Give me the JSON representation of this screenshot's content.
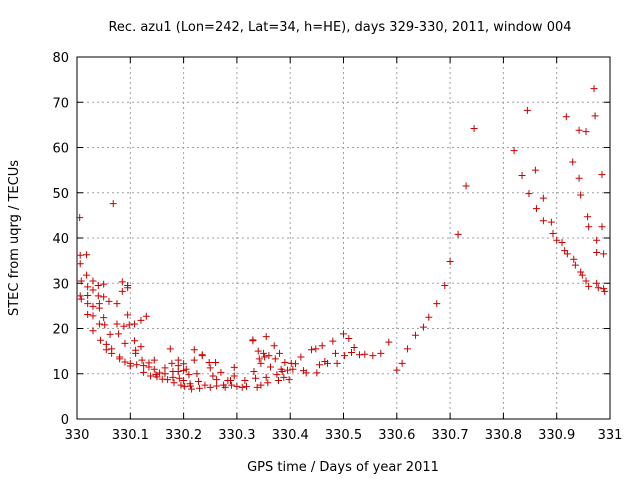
{
  "chart_data": {
    "type": "scatter",
    "title": "Rec. azu1 (Lon=242, Lat=34, h=HE), days 329-330, 2011, window 004",
    "xlabel": "GPS time / Days of year 2011",
    "ylabel": "STEC from uqrg / TECUs",
    "xlim": [
      330,
      331
    ],
    "ylim": [
      0,
      80
    ],
    "xticks": [
      330,
      330.1,
      330.2,
      330.3,
      330.4,
      330.5,
      330.6,
      330.7,
      330.8,
      330.9,
      331
    ],
    "xtick_labels": [
      "330",
      "330.1",
      "330.2",
      "330.3",
      "330.4",
      "330.5",
      "330.6",
      "330.7",
      "330.8",
      "330.9",
      "331"
    ],
    "yticks": [
      0,
      10,
      20,
      30,
      40,
      50,
      60,
      70,
      80
    ],
    "ytick_labels": [
      "0",
      "10",
      "20",
      "30",
      "40",
      "50",
      "60",
      "70",
      "80"
    ],
    "grid": true,
    "marker": "+",
    "color": "#cc0000",
    "series": [
      {
        "points": [
          [
            330.005,
            44.5
          ],
          [
            330.006,
            36.2
          ],
          [
            330.006,
            34.3
          ],
          [
            330.008,
            30.5
          ],
          [
            330.006,
            27.2
          ],
          [
            330.008,
            26.5
          ],
          [
            330.018,
            36.3
          ],
          [
            330.018,
            31.8
          ],
          [
            330.02,
            29.2
          ],
          [
            330.02,
            27.3
          ],
          [
            330.02,
            25.5
          ],
          [
            330.02,
            23.1
          ],
          [
            330.03,
            30.5
          ],
          [
            330.03,
            28.5
          ],
          [
            330.03,
            24.9
          ],
          [
            330.03,
            22.8
          ],
          [
            330.03,
            19.5
          ],
          [
            330.04,
            29.5
          ],
          [
            330.04,
            27.2
          ],
          [
            330.042,
            25.5
          ],
          [
            330.042,
            24.5
          ],
          [
            330.042,
            21.0
          ],
          [
            330.044,
            17.4
          ],
          [
            330.05,
            29.8
          ],
          [
            330.05,
            27.0
          ],
          [
            330.05,
            22.4
          ],
          [
            330.052,
            20.8
          ],
          [
            330.055,
            16.5
          ],
          [
            330.055,
            15.3
          ],
          [
            330.06,
            26.0
          ],
          [
            330.062,
            18.7
          ],
          [
            330.065,
            15.5
          ],
          [
            330.065,
            14.5
          ],
          [
            330.068,
            47.6
          ],
          [
            330.075,
            25.5
          ],
          [
            330.075,
            21.0
          ],
          [
            330.078,
            18.8
          ],
          [
            330.08,
            13.7
          ],
          [
            330.08,
            13.3
          ],
          [
            330.085,
            30.3
          ],
          [
            330.085,
            28.2
          ],
          [
            330.088,
            20.5
          ],
          [
            330.09,
            16.7
          ],
          [
            330.09,
            12.6
          ],
          [
            330.095,
            29.5
          ],
          [
            330.095,
            29.0
          ],
          [
            330.095,
            23.0
          ],
          [
            330.098,
            20.8
          ],
          [
            330.1,
            12.3
          ],
          [
            330.1,
            11.7
          ],
          [
            330.108,
            21.0
          ],
          [
            330.108,
            17.3
          ],
          [
            330.11,
            15.2
          ],
          [
            330.11,
            14.5
          ],
          [
            330.112,
            12.0
          ],
          [
            330.12,
            21.8
          ],
          [
            330.12,
            16.0
          ],
          [
            330.122,
            13.0
          ],
          [
            330.125,
            11.8
          ],
          [
            330.125,
            10.3
          ],
          [
            330.13,
            22.7
          ],
          [
            330.135,
            12.4
          ],
          [
            330.135,
            11.5
          ],
          [
            330.138,
            9.5
          ],
          [
            330.145,
            13.0
          ],
          [
            330.145,
            11.0
          ],
          [
            330.148,
            9.8
          ],
          [
            330.15,
            9.3
          ],
          [
            330.155,
            10.2
          ],
          [
            330.16,
            8.8
          ],
          [
            330.165,
            11.3
          ],
          [
            330.165,
            10.0
          ],
          [
            330.17,
            8.7
          ],
          [
            330.175,
            15.5
          ],
          [
            330.178,
            12.3
          ],
          [
            330.18,
            10.5
          ],
          [
            330.18,
            9.2
          ],
          [
            330.182,
            8.0
          ],
          [
            330.19,
            13.0
          ],
          [
            330.19,
            11.8
          ],
          [
            330.19,
            10.5
          ],
          [
            330.192,
            9.0
          ],
          [
            330.195,
            7.5
          ],
          [
            330.2,
            12.2
          ],
          [
            330.2,
            10.7
          ],
          [
            330.2,
            8.5
          ],
          [
            330.202,
            7.2
          ],
          [
            330.205,
            11.0
          ],
          [
            330.21,
            9.8
          ],
          [
            330.212,
            7.8
          ],
          [
            330.213,
            7.3
          ],
          [
            330.215,
            6.6
          ],
          [
            330.22,
            15.3
          ],
          [
            330.22,
            13.0
          ],
          [
            330.225,
            10.0
          ],
          [
            330.228,
            8.3
          ],
          [
            330.23,
            6.8
          ],
          [
            330.235,
            14.2
          ],
          [
            330.235,
            14.0
          ],
          [
            330.24,
            7.5
          ],
          [
            330.248,
            12.5
          ],
          [
            330.25,
            11.3
          ],
          [
            330.25,
            7.0
          ],
          [
            330.255,
            9.5
          ],
          [
            330.26,
            12.5
          ],
          [
            330.262,
            8.7
          ],
          [
            330.262,
            7.3
          ],
          [
            330.27,
            10.3
          ],
          [
            330.275,
            7.5
          ],
          [
            330.278,
            7.0
          ],
          [
            330.283,
            8.5
          ],
          [
            330.288,
            8.5
          ],
          [
            330.29,
            7.5
          ],
          [
            330.295,
            11.4
          ],
          [
            330.295,
            9.5
          ],
          [
            330.3,
            7.2
          ],
          [
            330.31,
            7.0
          ],
          [
            330.315,
            8.5
          ],
          [
            330.318,
            7.2
          ],
          [
            330.33,
            17.5
          ],
          [
            330.33,
            17.3
          ],
          [
            330.332,
            10.5
          ],
          [
            330.335,
            9.0
          ],
          [
            330.338,
            7.0
          ],
          [
            330.34,
            15.0
          ],
          [
            330.342,
            13.3
          ],
          [
            330.345,
            12.3
          ],
          [
            330.345,
            7.5
          ],
          [
            330.35,
            14.5
          ],
          [
            330.352,
            13.7
          ],
          [
            330.355,
            18.2
          ],
          [
            330.355,
            9.2
          ],
          [
            330.358,
            8.0
          ],
          [
            330.36,
            14.0
          ],
          [
            330.363,
            11.5
          ],
          [
            330.37,
            16.2
          ],
          [
            330.372,
            13.3
          ],
          [
            330.375,
            9.8
          ],
          [
            330.378,
            8.5
          ],
          [
            330.38,
            14.5
          ],
          [
            330.383,
            11.0
          ],
          [
            330.385,
            10.5
          ],
          [
            330.388,
            9.2
          ],
          [
            330.39,
            12.5
          ],
          [
            330.395,
            10.8
          ],
          [
            330.398,
            8.7
          ],
          [
            330.402,
            12.3
          ],
          [
            330.405,
            11.0
          ],
          [
            330.41,
            12.2
          ],
          [
            330.42,
            13.7
          ],
          [
            330.425,
            10.7
          ],
          [
            330.43,
            10.2
          ],
          [
            330.44,
            15.3
          ],
          [
            330.448,
            15.5
          ],
          [
            330.45,
            10.2
          ],
          [
            330.455,
            12.0
          ],
          [
            330.46,
            16.2
          ],
          [
            330.465,
            12.7
          ],
          [
            330.47,
            12.3
          ],
          [
            330.48,
            17.2
          ],
          [
            330.485,
            14.5
          ],
          [
            330.488,
            12.3
          ],
          [
            330.5,
            18.8
          ],
          [
            330.502,
            14.0
          ],
          [
            330.51,
            17.8
          ],
          [
            330.515,
            14.7
          ],
          [
            330.52,
            15.8
          ],
          [
            330.53,
            14.2
          ],
          [
            330.54,
            14.3
          ],
          [
            330.555,
            14.0
          ],
          [
            330.57,
            14.5
          ],
          [
            330.585,
            17.0
          ],
          [
            330.6,
            10.8
          ],
          [
            330.61,
            12.3
          ],
          [
            330.62,
            15.5
          ],
          [
            330.635,
            18.5
          ],
          [
            330.65,
            20.3
          ],
          [
            330.66,
            22.5
          ],
          [
            330.675,
            25.5
          ],
          [
            330.69,
            29.5
          ],
          [
            330.7,
            34.8
          ],
          [
            330.715,
            40.8
          ],
          [
            330.73,
            51.5
          ],
          [
            330.745,
            64.2
          ],
          [
            330.82,
            59.3
          ],
          [
            330.835,
            53.8
          ],
          [
            330.845,
            68.2
          ],
          [
            330.848,
            49.8
          ],
          [
            330.86,
            55.0
          ],
          [
            330.862,
            46.5
          ],
          [
            330.875,
            48.8
          ],
          [
            330.875,
            43.8
          ],
          [
            330.89,
            43.5
          ],
          [
            330.893,
            41.0
          ],
          [
            330.9,
            39.5
          ],
          [
            330.91,
            39.0
          ],
          [
            330.915,
            37.2
          ],
          [
            330.918,
            66.8
          ],
          [
            330.92,
            36.5
          ],
          [
            330.93,
            56.8
          ],
          [
            330.932,
            35.3
          ],
          [
            330.935,
            34.0
          ],
          [
            330.942,
            63.8
          ],
          [
            330.942,
            53.2
          ],
          [
            330.945,
            49.5
          ],
          [
            330.945,
            32.5
          ],
          [
            330.948,
            31.8
          ],
          [
            330.955,
            63.5
          ],
          [
            330.955,
            30.5
          ],
          [
            330.958,
            44.7
          ],
          [
            330.96,
            42.5
          ],
          [
            330.96,
            29.3
          ],
          [
            330.97,
            73.0
          ],
          [
            330.972,
            67.0
          ],
          [
            330.975,
            39.5
          ],
          [
            330.975,
            36.8
          ],
          [
            330.975,
            30.0
          ],
          [
            330.978,
            29.0
          ],
          [
            330.985,
            54.0
          ],
          [
            330.985,
            42.5
          ],
          [
            330.988,
            36.5
          ],
          [
            330.988,
            28.8
          ],
          [
            330.99,
            28.2
          ]
        ]
      }
    ]
  }
}
